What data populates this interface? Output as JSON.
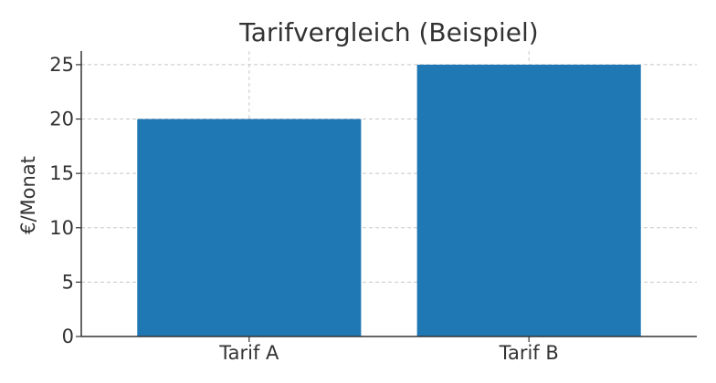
{
  "chart_data": {
    "type": "bar",
    "title": "Tarifvergleich (Beispiel)",
    "xlabel": "",
    "ylabel": "€/Monat",
    "categories": [
      "Tarif A",
      "Tarif B"
    ],
    "values": [
      20,
      25
    ],
    "ylim": [
      0,
      26.25
    ],
    "yticks": [
      0,
      5,
      10,
      15,
      20,
      25
    ],
    "grid": true,
    "bar_color": "#1f77b4"
  }
}
